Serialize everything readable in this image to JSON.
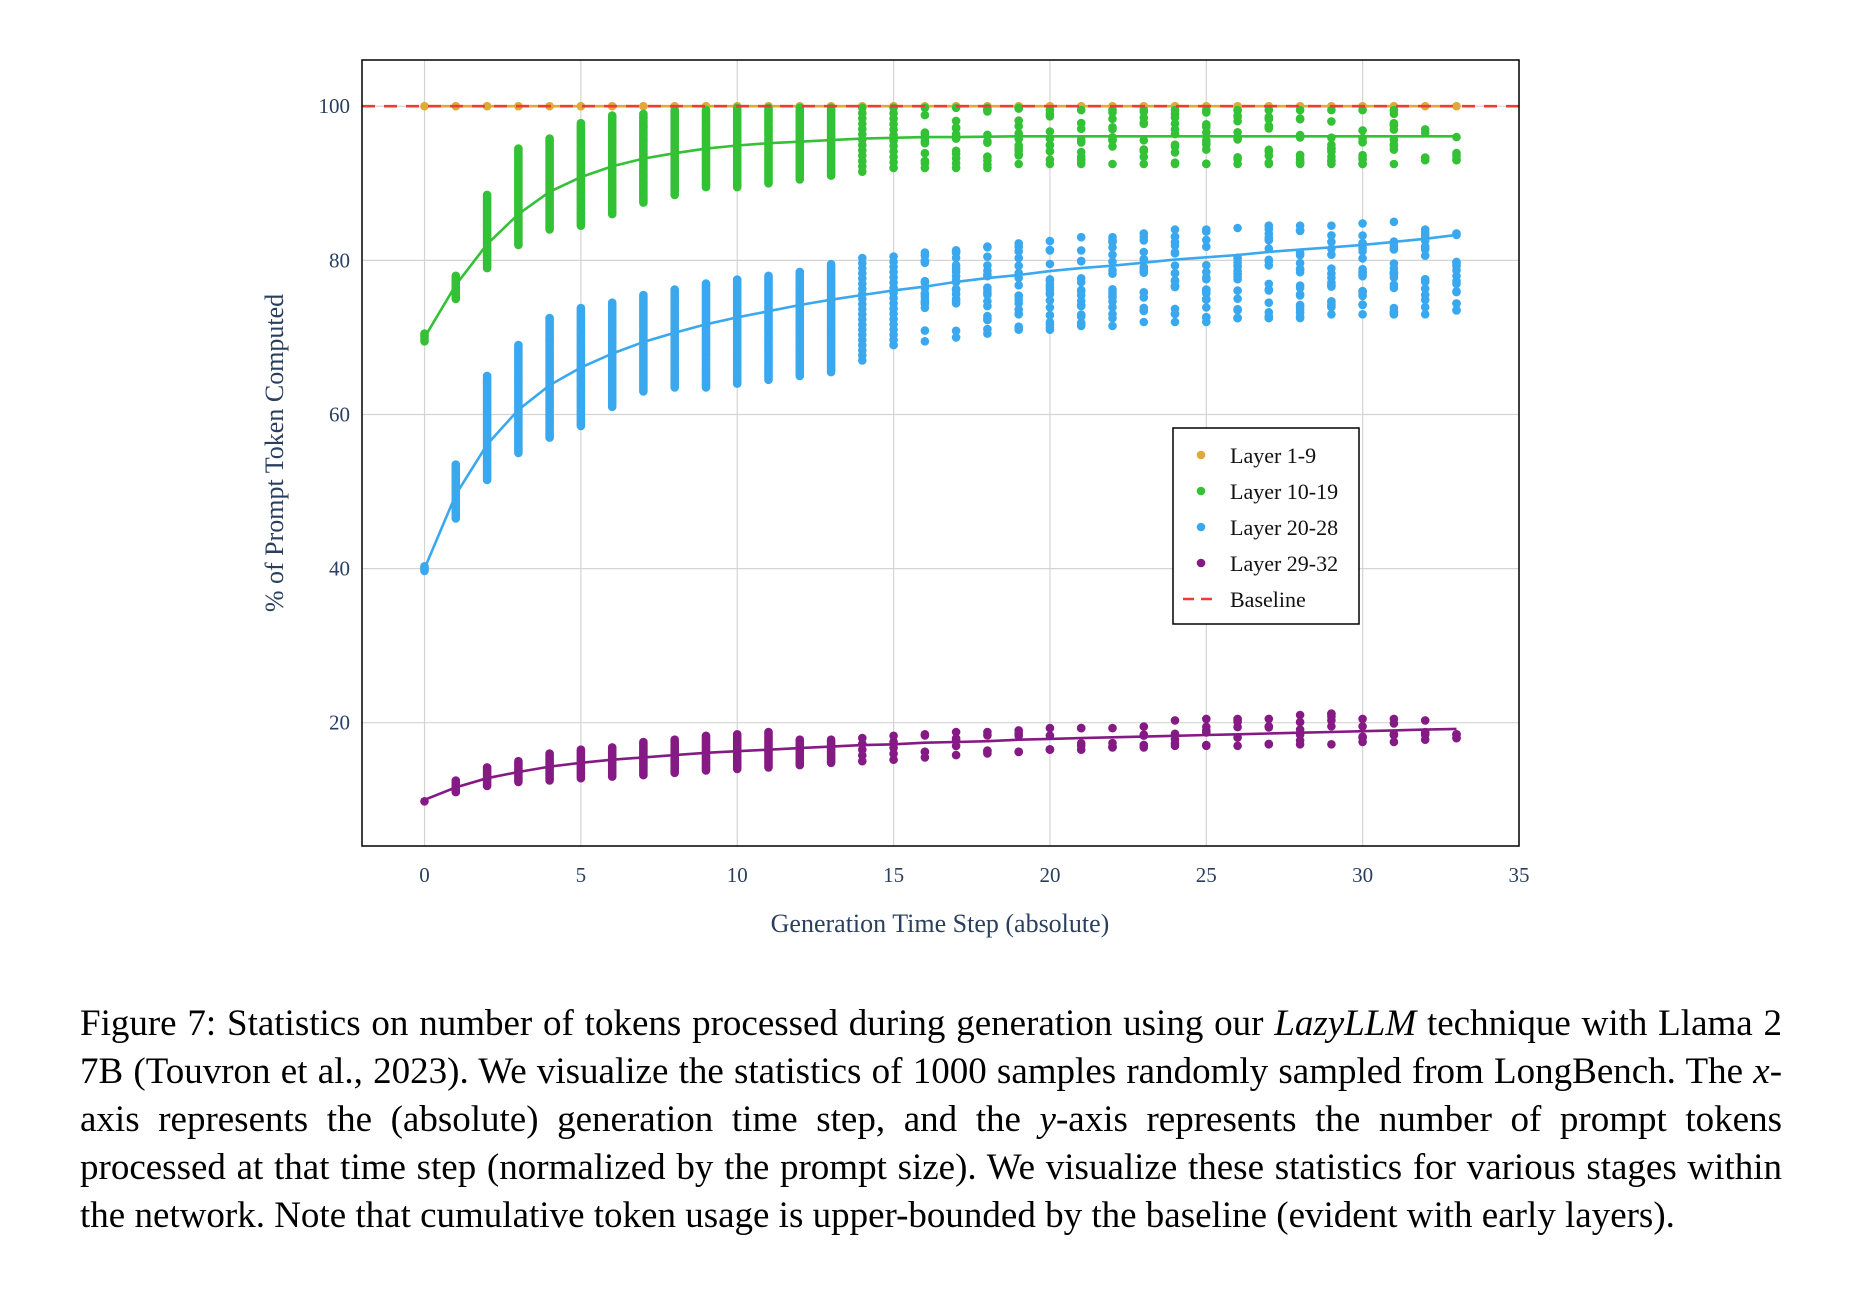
{
  "chart_data": {
    "type": "scatter",
    "xlabel": "Generation Time Step (absolute)",
    "ylabel": "% of Prompt Token Computed",
    "xlim": [
      -2,
      35
    ],
    "ylim": [
      4,
      106
    ],
    "xticks": [
      0,
      5,
      10,
      15,
      20,
      25,
      30,
      35
    ],
    "yticks": [
      20,
      40,
      60,
      80,
      100
    ],
    "grid": true,
    "legend_position": "center-right",
    "baseline": {
      "name": "Baseline",
      "y": 100,
      "color": "#ef3b36",
      "style": "dashed"
    },
    "series": [
      {
        "name": "Layer 1-9",
        "color": "#e0a93a",
        "x": [
          0,
          1,
          2,
          3,
          4,
          5,
          6,
          7,
          8,
          9,
          10,
          11,
          12,
          13,
          14,
          15,
          16,
          17,
          18,
          19,
          20,
          21,
          22,
          23,
          24,
          25,
          26,
          27,
          28,
          29,
          30,
          31,
          32,
          33
        ],
        "y_min": [
          100,
          100,
          100,
          100,
          100,
          100,
          100,
          100,
          100,
          100,
          100,
          100,
          100,
          100,
          100,
          100,
          100,
          100,
          100,
          100,
          100,
          100,
          100,
          100,
          100,
          100,
          100,
          100,
          100,
          100,
          100,
          100,
          100,
          100
        ],
        "y_max": [
          100,
          100,
          100,
          100,
          100,
          100,
          100,
          100,
          100,
          100,
          100,
          100,
          100,
          100,
          100,
          100,
          100,
          100,
          100,
          100,
          100,
          100,
          100,
          100,
          100,
          100,
          100,
          100,
          100,
          100,
          100,
          100,
          100,
          100
        ],
        "fit": [
          100,
          100,
          100,
          100,
          100,
          100,
          100,
          100,
          100,
          100,
          100,
          100,
          100,
          100,
          100,
          100,
          100,
          100,
          100,
          100,
          100,
          100,
          100,
          100,
          100,
          100,
          100,
          100,
          100,
          100,
          100,
          100,
          100,
          100
        ]
      },
      {
        "name": "Layer 10-19",
        "color": "#33c135",
        "x": [
          0,
          1,
          2,
          3,
          4,
          5,
          6,
          7,
          8,
          9,
          10,
          11,
          12,
          13,
          14,
          15,
          16,
          17,
          18,
          19,
          20,
          21,
          22,
          23,
          24,
          25,
          26,
          27,
          28,
          29,
          30,
          31,
          32,
          33
        ],
        "y_min": [
          69.5,
          75,
          79,
          82,
          84,
          84.5,
          86,
          87.5,
          88.5,
          89.5,
          89.5,
          90,
          90.5,
          91,
          91.5,
          92,
          92,
          92,
          92,
          92.5,
          92.5,
          92.5,
          92.5,
          92.5,
          92.5,
          92.5,
          92.5,
          92.5,
          92.5,
          92.5,
          92.5,
          92.5,
          93,
          93
        ],
        "y_max": [
          70.5,
          78,
          88.5,
          94.5,
          95.8,
          97.8,
          98.8,
          99,
          99.5,
          99.5,
          99.8,
          99.8,
          99.8,
          99.8,
          99.8,
          99.8,
          99.8,
          99.8,
          99.8,
          99.8,
          99.5,
          99.5,
          99.5,
          99.5,
          99.5,
          99.5,
          99.5,
          99.5,
          99.5,
          99.5,
          99.5,
          99.5,
          97,
          96
        ],
        "fit": [
          70,
          76.8,
          82.1,
          86,
          88.9,
          90.8,
          92.2,
          93.2,
          93.9,
          94.5,
          94.9,
          95.2,
          95.4,
          95.6,
          95.8,
          95.9,
          96,
          96,
          96.05,
          96.1,
          96.1,
          96.1,
          96.1,
          96.1,
          96.1,
          96.1,
          96.1,
          96.1,
          96.1,
          96.1,
          96.1,
          96.1,
          96.1,
          96.1
        ]
      },
      {
        "name": "Layer 20-28",
        "color": "#3aa8ef",
        "x": [
          0,
          1,
          2,
          3,
          4,
          5,
          6,
          7,
          8,
          9,
          10,
          11,
          12,
          13,
          14,
          15,
          16,
          17,
          18,
          19,
          20,
          21,
          22,
          23,
          24,
          25,
          26,
          27,
          28,
          29,
          30,
          31,
          32,
          33
        ],
        "y_min": [
          39.7,
          46.5,
          51.5,
          55,
          57,
          58.5,
          61,
          63,
          63.5,
          63.5,
          64,
          64.5,
          65,
          65.5,
          67,
          69,
          69.5,
          70,
          70.5,
          71,
          71,
          71.5,
          71.5,
          72,
          72,
          72,
          72.5,
          72.5,
          72.5,
          73,
          73,
          73,
          73,
          73.5
        ],
        "y_max": [
          40.3,
          53.5,
          65,
          69,
          72.5,
          73.8,
          74.5,
          75.5,
          76.2,
          77,
          77.5,
          78,
          78.5,
          79.5,
          80.3,
          80.5,
          81,
          81.3,
          81.8,
          82.2,
          82.5,
          83,
          83,
          83.5,
          84,
          84,
          84.2,
          84.5,
          84.5,
          84.5,
          84.8,
          85,
          84,
          83.5
        ],
        "fit": [
          40,
          49.6,
          56.1,
          60.6,
          63.8,
          66.1,
          67.9,
          69.4,
          70.6,
          71.7,
          72.6,
          73.4,
          74.2,
          74.9,
          75.5,
          76.1,
          76.6,
          77.2,
          77.7,
          78.1,
          78.6,
          79,
          79.3,
          79.7,
          80.1,
          80.4,
          80.7,
          81.1,
          81.4,
          81.7,
          82,
          82.4,
          82.8,
          83.3
        ]
      },
      {
        "name": "Layer 29-32",
        "color": "#861a84",
        "x": [
          0,
          1,
          2,
          3,
          4,
          5,
          6,
          7,
          8,
          9,
          10,
          11,
          12,
          13,
          14,
          15,
          16,
          17,
          18,
          19,
          20,
          21,
          22,
          23,
          24,
          25,
          26,
          27,
          28,
          29,
          30,
          31,
          32,
          33
        ],
        "y_min": [
          9.8,
          11,
          11.8,
          12.3,
          12.5,
          12.8,
          13,
          13.2,
          13.5,
          13.8,
          14,
          14.2,
          14.5,
          14.8,
          15,
          15.2,
          15.5,
          15.8,
          16,
          16.2,
          16.5,
          16.5,
          16.8,
          16.8,
          17,
          17,
          17,
          17.2,
          17.2,
          17.2,
          17.5,
          17.5,
          17.8,
          18
        ],
        "y_max": [
          10.2,
          12.5,
          14.2,
          15,
          16,
          16.5,
          16.8,
          17.5,
          17.8,
          18.3,
          18.5,
          18.8,
          17.8,
          17.8,
          18,
          18.3,
          18.5,
          18.8,
          18.8,
          19,
          19.3,
          19.3,
          19.3,
          19.5,
          20.3,
          20.5,
          20.5,
          20.5,
          21,
          21.2,
          20.5,
          20.5,
          20.3,
          18.5
        ],
        "fit": [
          10,
          11.6,
          12.8,
          13.6,
          14.3,
          14.8,
          15.2,
          15.5,
          15.8,
          16.1,
          16.3,
          16.5,
          16.7,
          16.9,
          17.1,
          17.2,
          17.4,
          17.5,
          17.6,
          17.8,
          17.9,
          18,
          18.1,
          18.2,
          18.3,
          18.4,
          18.5,
          18.6,
          18.7,
          18.8,
          18.9,
          19,
          19.1,
          19.2
        ]
      }
    ]
  },
  "caption": {
    "figure_label": "Figure 7:",
    "part1": "Statistics on number of tokens processed during generation using our",
    "technique_name": "LazyLLM",
    "part2": "technique with Llama 2 7B (Touvron et al., 2023). We visualize the statistics of 1000 samples randomly sampled from LongBench. The",
    "x_symbol": "x",
    "part3": "-axis represents the (absolute) generation time step, and the",
    "y_symbol": "y",
    "part4": "-axis represents the number of prompt tokens processed at that time step (normalized by the prompt size). We visualize these statistics for various stages within the network. Note that cumulative token usage is upper-bounded by the baseline (evident with early layers)."
  }
}
